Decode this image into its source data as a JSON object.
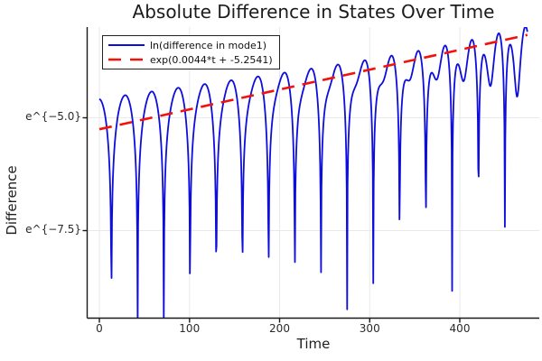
{
  "title": "Absolute Difference in States Over Time",
  "axes": {
    "x_label": "Time",
    "y_label": "Difference",
    "x_ticks": {
      "values": [
        0,
        100,
        200,
        300,
        400
      ],
      "labels": [
        "0",
        "100",
        "200",
        "300",
        "400"
      ]
    },
    "y_ticks": {
      "values": [
        -5.0,
        -7.5
      ],
      "labels": [
        "e^{−5.0}",
        "e^{−7.5}"
      ]
    }
  },
  "legend": {
    "items": [
      {
        "label": "ln(difference in mode1)",
        "color": "#0d0dde",
        "line_style": "solid"
      },
      {
        "label": "exp(0.0044*t + -5.2541)",
        "color": "#f31209",
        "line_style": "dashed"
      }
    ]
  },
  "chart_data": {
    "type": "line",
    "title": "Absolute Difference in States Over Time",
    "xlabel": "Time",
    "ylabel": "Difference",
    "x_range_shown": [
      -13.5,
      488
    ],
    "y_scale": "ln",
    "y_ticks_ln": [
      -5.0,
      -7.5
    ],
    "y_range_shown_ln": [
      -9.45,
      -2.99
    ],
    "grid": true,
    "legend_position": "top-left",
    "series": [
      {
        "name": "ln(difference in mode1)",
        "color": "#0d0dde",
        "style": "solid",
        "width": 1.8,
        "description": "ln|difference| oscillates: rounded arcs between sharp downward cusps every ~29.2 time units (first cusp t≈13.5); peak envelope rises from ln≈-4.6 at t=0 at rate ≈0.0027/t; cusp depth shrinks from ln≈-9.3 (t≈13) to ≈-4.4 (t≈420); curve turns jagged from two-mode interference after t≈400",
        "model": {
          "type": "sum_two_damped_modes_abs_ln",
          "t_start": 0,
          "t_end": 475,
          "dt": 0.5,
          "mode1": {
            "ln_amp0": -4.6,
            "growth": 0.0027,
            "period": 58.4,
            "t_zero": 13.5
          },
          "mode2": {
            "ln_amp0": -8.3,
            "growth": 0.0098,
            "period": 19.7,
            "t_zero": 6.0
          },
          "clamp_ln": [
            -9.6,
            -3.0
          ]
        }
      },
      {
        "name": "exp(0.0044*t + -5.2541)",
        "color": "#f31209",
        "style": "dashed",
        "width": 2.6,
        "model": {
          "type": "ln_linear",
          "slope": 0.0044,
          "intercept": -5.2541,
          "t_start": 0,
          "t_end": 475
        }
      }
    ]
  }
}
